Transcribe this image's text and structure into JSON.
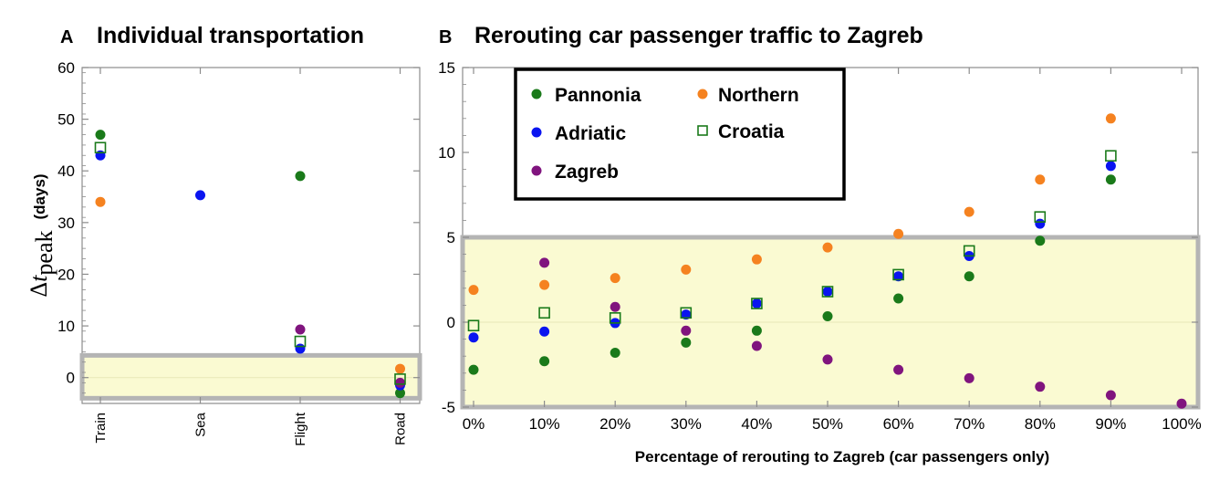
{
  "colors": {
    "Pannonia": "#1a7a1a",
    "Adriatic": "#0a14f0",
    "Zagreb": "#80147e",
    "Northern": "#f58220",
    "Croatia": "#1a7a1a",
    "band_fill": "#fafad2",
    "band_border": "#b4b4b4",
    "frame": "#8c8c8c"
  },
  "ylabel": {
    "delta": "Δ",
    "t": "t",
    "sub": "peak",
    "unit": "(days)"
  },
  "chart_data": [
    {
      "panel": "A",
      "type": "scatter",
      "title": "Individual transportation",
      "xlabel": "",
      "ylabel": "Δt_peak (days)",
      "categories": [
        "Train",
        "Sea",
        "Flight",
        "Road"
      ],
      "ylim": [
        -5,
        60
      ],
      "yticks": [
        0,
        10,
        20,
        30,
        40,
        50,
        60
      ],
      "band": [
        -4,
        4.3
      ],
      "series": [
        {
          "name": "Pannonia",
          "marker": "circle",
          "values": [
            47,
            null,
            39,
            -3
          ]
        },
        {
          "name": "Adriatic",
          "marker": "circle",
          "values": [
            43,
            35.3,
            5.6,
            -1.5
          ]
        },
        {
          "name": "Zagreb",
          "marker": "circle",
          "values": [
            null,
            null,
            9.3,
            -1
          ]
        },
        {
          "name": "Northern",
          "marker": "circle",
          "values": [
            34,
            null,
            null,
            1.7
          ]
        },
        {
          "name": "Croatia",
          "marker": "square",
          "values": [
            44.5,
            null,
            7,
            -0.3
          ]
        }
      ]
    },
    {
      "panel": "B",
      "type": "scatter",
      "title": "Rerouting car passenger traffic to Zagreb",
      "xlabel": "Percentage of rerouting to Zagreb (car passengers only)",
      "ylabel": "",
      "categories": [
        "0%",
        "10%",
        "20%",
        "30%",
        "40%",
        "50%",
        "60%",
        "70%",
        "80%",
        "90%",
        "100%"
      ],
      "ylim": [
        -5,
        15
      ],
      "yticks": [
        -5,
        0,
        5,
        10,
        15
      ],
      "band": [
        -5,
        5
      ],
      "legend_position": "top-left",
      "series": [
        {
          "name": "Pannonia",
          "marker": "circle",
          "values": [
            -2.8,
            -2.3,
            -1.8,
            -1.2,
            -0.5,
            0.35,
            1.4,
            2.7,
            4.8,
            8.4,
            null
          ]
        },
        {
          "name": "Northern",
          "marker": "circle",
          "values": [
            1.9,
            2.2,
            2.6,
            3.1,
            3.7,
            4.4,
            5.2,
            6.5,
            8.4,
            12.0,
            null
          ]
        },
        {
          "name": "Adriatic",
          "marker": "circle",
          "values": [
            -0.9,
            -0.55,
            -0.05,
            0.45,
            1.1,
            1.8,
            2.7,
            3.9,
            5.8,
            9.2,
            null
          ]
        },
        {
          "name": "Croatia",
          "marker": "square",
          "values": [
            -0.2,
            0.55,
            0.25,
            0.55,
            1.1,
            1.8,
            2.8,
            4.2,
            6.2,
            9.8,
            null
          ]
        },
        {
          "name": "Zagreb",
          "marker": "circle",
          "values": [
            null,
            3.5,
            0.9,
            -0.5,
            -1.4,
            -2.2,
            -2.8,
            -3.3,
            -3.8,
            -4.3,
            -4.8
          ]
        }
      ]
    }
  ]
}
